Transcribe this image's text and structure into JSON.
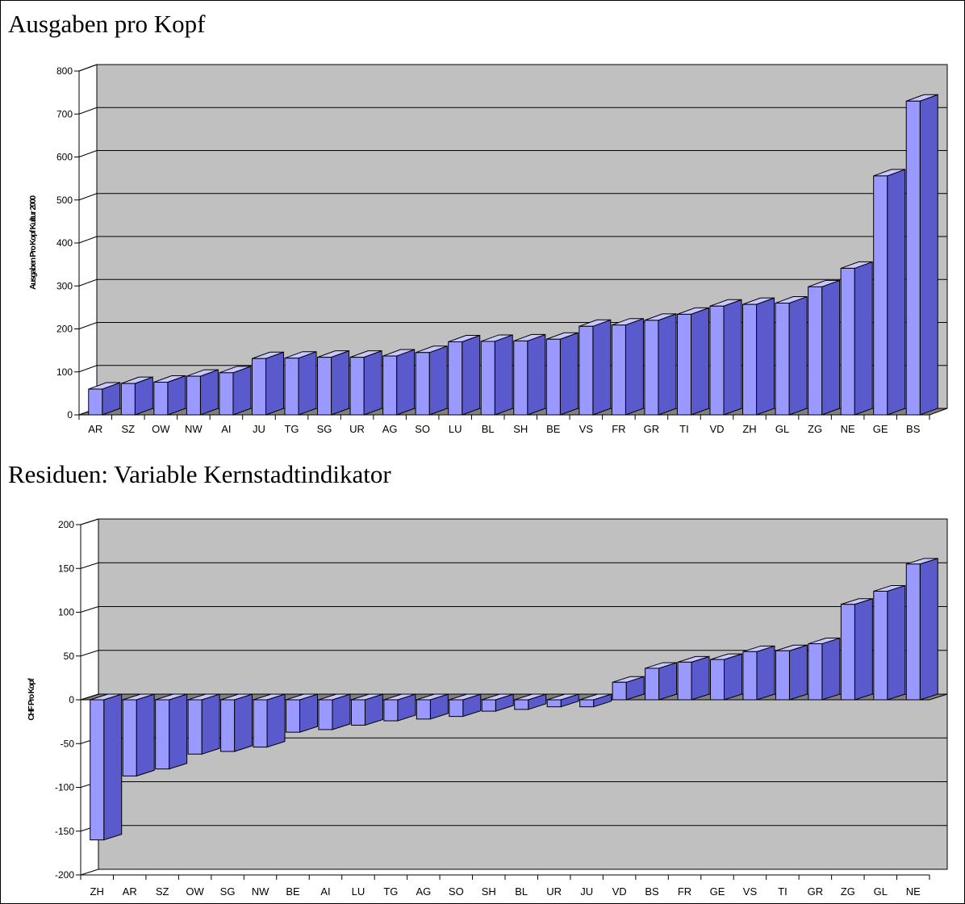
{
  "colors": {
    "bar_front": "#9999ff",
    "bar_top": "#c8c8ff",
    "bar_side": "#5a5acc",
    "plot_back": "#c0c0c0",
    "floor": "#808080",
    "gridline": "#000000"
  },
  "chart_data": [
    {
      "type": "bar",
      "title": "Ausgaben pro Kopf",
      "xlabel": "",
      "ylabel": "Ausgaben Pro Kopf Kultur 2000",
      "ylim": [
        0,
        800
      ],
      "yticks": [
        0,
        100,
        200,
        300,
        400,
        500,
        600,
        700,
        800
      ],
      "grid": true,
      "categories": [
        "AR",
        "SZ",
        "OW",
        "NW",
        "AI",
        "JU",
        "TG",
        "SG",
        "UR",
        "AG",
        "SO",
        "LU",
        "BL",
        "SH",
        "BE",
        "VS",
        "FR",
        "GR",
        "TI",
        "VD",
        "ZH",
        "GL",
        "ZG",
        "NE",
        "GE",
        "BS"
      ],
      "values": [
        60,
        73,
        76,
        90,
        98,
        131,
        132,
        134,
        134,
        137,
        145,
        170,
        171,
        172,
        176,
        206,
        209,
        220,
        234,
        253,
        257,
        260,
        298,
        341,
        556,
        730
      ]
    },
    {
      "type": "bar",
      "title": "Residuen: Variable Kernstadtindikator",
      "xlabel": "",
      "ylabel": "CHF Pro Kopf",
      "ylim": [
        -200,
        200
      ],
      "yticks": [
        -200,
        -150,
        -100,
        -50,
        0,
        50,
        100,
        150,
        200
      ],
      "grid": true,
      "categories": [
        "ZH",
        "AR",
        "SZ",
        "OW",
        "SG",
        "NW",
        "BE",
        "AI",
        "LU",
        "TG",
        "AG",
        "SO",
        "SH",
        "BL",
        "UR",
        "JU",
        "VD",
        "BS",
        "FR",
        "GE",
        "VS",
        "TI",
        "GR",
        "ZG",
        "GL",
        "NE"
      ],
      "values": [
        -160,
        -87,
        -79,
        -62,
        -59,
        -54,
        -37,
        -34,
        -29,
        -24,
        -22,
        -19,
        -13,
        -11,
        -8,
        -8,
        20,
        36,
        43,
        46,
        55,
        56,
        64,
        109,
        124,
        155
      ]
    }
  ]
}
